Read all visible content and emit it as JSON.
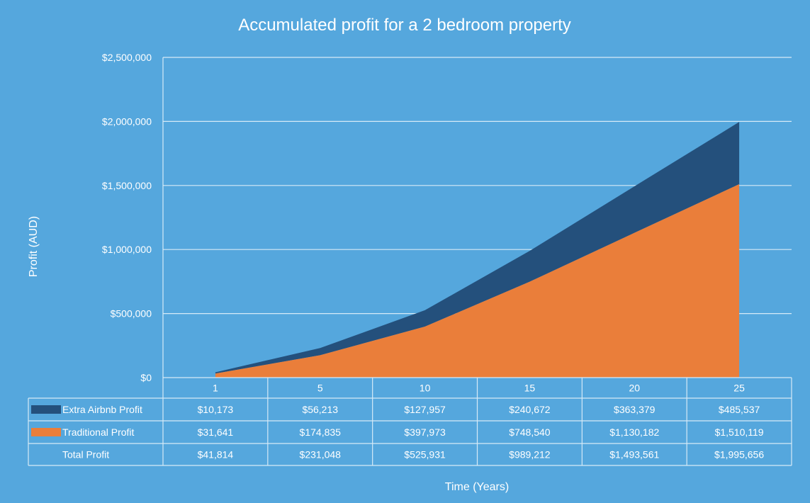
{
  "colors": {
    "background": "#55a7dd",
    "extra_airbnb": "#24507c",
    "traditional": "#ea7e3a",
    "grid": "#d6eaf7",
    "text": "#ffffff"
  },
  "chart_data": {
    "type": "area",
    "title": "Accumulated profit for a 2 bedroom property",
    "xlabel": "Time (Years)",
    "ylabel": "Profit (AUD)",
    "stacked": true,
    "categories": [
      "1",
      "5",
      "10",
      "15",
      "20",
      "25"
    ],
    "ylim": [
      0,
      2500000
    ],
    "y_ticks": [
      0,
      500000,
      1000000,
      1500000,
      2000000,
      2500000
    ],
    "y_tick_labels": [
      "$0",
      "$500,000",
      "$1,000,000",
      "$1,500,000",
      "$2,000,000",
      "$2,500,000"
    ],
    "grid": true,
    "series": [
      {
        "name": "Extra Airbnb Profit",
        "color": "#24507c",
        "values": [
          10173,
          56213,
          127957,
          240672,
          363379,
          485537
        ],
        "labels": [
          "$10,173",
          "$56,213",
          "$127,957",
          "$240,672",
          "$363,379",
          "$485,537"
        ]
      },
      {
        "name": "Traditional Profit",
        "color": "#ea7e3a",
        "values": [
          31641,
          174835,
          397973,
          748540,
          1130182,
          1510119
        ],
        "labels": [
          "$31,641",
          "$174,835",
          "$397,973",
          "$748,540",
          "$1,130,182",
          "$1,510,119"
        ]
      }
    ],
    "total_row": {
      "name": "Total Profit",
      "values": [
        41814,
        231048,
        525931,
        989212,
        1493561,
        1995656
      ],
      "labels": [
        "$41,814",
        "$231,048",
        "$525,931",
        "$989,212",
        "$1,493,561",
        "$1,995,656"
      ]
    }
  }
}
